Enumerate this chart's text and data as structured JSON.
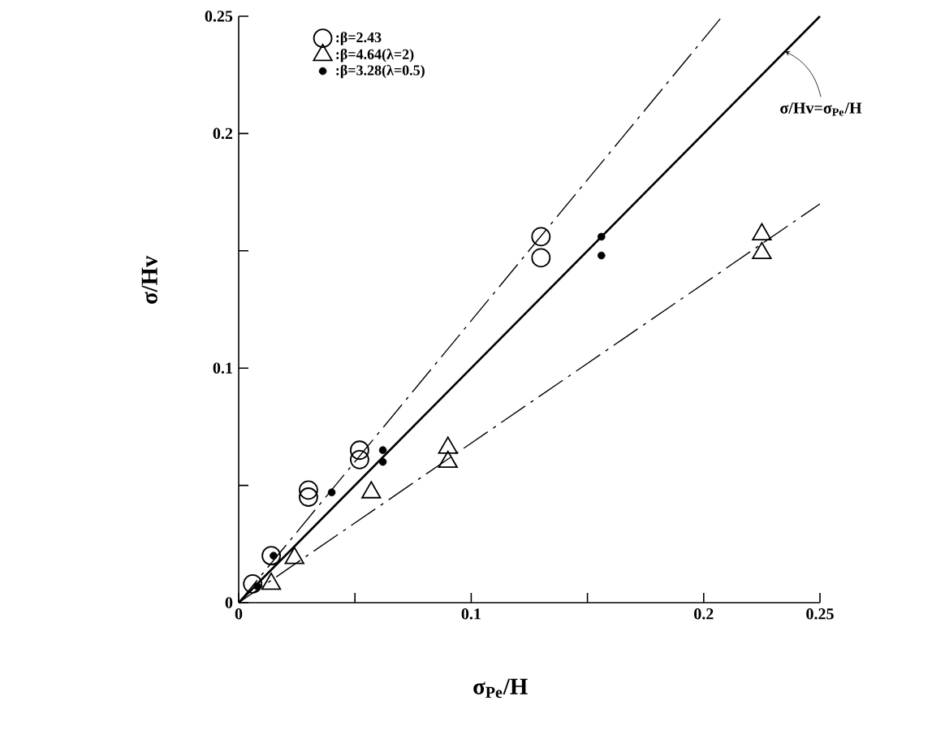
{
  "chart_data": {
    "type": "scatter",
    "xlabel": "σ$_{Pe}$/H",
    "ylabel": "σ/Hv",
    "xlim": [
      0,
      0.25
    ],
    "ylim": [
      0,
      0.25
    ],
    "xticks": [
      0,
      {
        "value": 0.05,
        "label": null
      },
      0.1,
      {
        "value": 0.15,
        "label": null
      },
      0.2,
      0.25
    ],
    "yticks": [
      0,
      {
        "value": 0.05,
        "label": null
      },
      0.1,
      {
        "value": 0.15,
        "label": null
      },
      0.2,
      0.25
    ],
    "grid": false,
    "legend": "top left",
    "annotations": [
      {
        "text": "σ/Hv=σ$_{Pe}$/H",
        "x": 0.235,
        "y": 0.235
      }
    ],
    "series": [
      {
        "name": ":β=2.43",
        "marker": "circle",
        "color": "#000000",
        "x": [
          0.006,
          0.014,
          0.03,
          0.03,
          0.052,
          0.052,
          0.13,
          0.13
        ],
        "values": [
          0.008,
          0.02,
          0.048,
          0.045,
          0.065,
          0.061,
          0.156,
          0.147
        ]
      },
      {
        "name": ":β=4.64(λ=2)",
        "marker": "triangle",
        "color": "#000000",
        "x": [
          0.014,
          0.024,
          0.057,
          0.09,
          0.09,
          0.225,
          0.225
        ],
        "values": [
          0.008,
          0.019,
          0.047,
          0.066,
          0.06,
          0.157,
          0.149
        ]
      },
      {
        "name": ":β=3.28(λ=0.5)",
        "color": "#000000",
        "x": [
          0.008,
          0.015,
          0.04,
          0.062,
          0.062,
          0.156,
          0.156
        ],
        "values": [
          0.007,
          0.02,
          0.047,
          0.065,
          0.06,
          0.156,
          0.148
        ]
      },
      {
        "type": "line",
        "line_style": "solid",
        "color": "#000000",
        "x": [
          0,
          0.25
        ],
        "values": [
          0,
          0.25
        ]
      },
      {
        "type": "line",
        "line_style": "dashed",
        "color": "#000000",
        "x": [
          0,
          0.208
        ],
        "values": [
          0,
          0.25
        ]
      },
      {
        "type": "line",
        "line_style": "dashed",
        "color": "#000000",
        "x": [
          0,
          0.25
        ],
        "values": [
          0,
          0.17
        ]
      }
    ]
  }
}
